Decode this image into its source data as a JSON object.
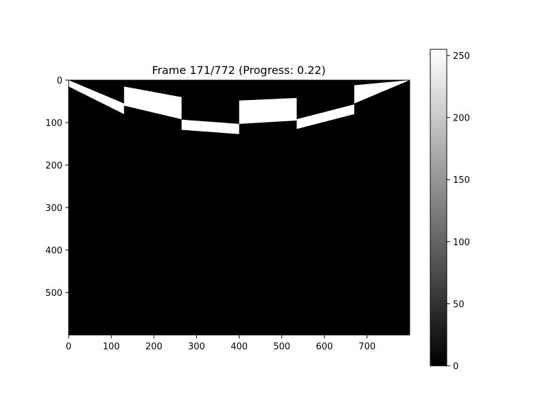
{
  "chart_data": {
    "type": "heatmap",
    "title": "Frame 171/772 (Progress: 0.22)",
    "colormap": "gray",
    "image_size": {
      "width": 800,
      "height": 600
    },
    "xlim": [
      0,
      800
    ],
    "ylim": [
      600,
      0
    ],
    "x_ticks": [
      0,
      100,
      200,
      300,
      400,
      500,
      600,
      700
    ],
    "y_ticks": [
      0,
      100,
      200,
      300,
      400,
      500
    ],
    "background_value": 0,
    "bands": [
      {
        "x_start": 0,
        "x_end": 130,
        "top": [
          0,
          55
        ],
        "bottom": [
          15,
          80
        ],
        "value": 255
      },
      {
        "x_start": 130,
        "x_end": 265,
        "top": [
          15,
          40
        ],
        "bottom": [
          60,
          92
        ],
        "value": 255
      },
      {
        "x_start": 265,
        "x_end": 400,
        "top": [
          93,
          103
        ],
        "bottom": [
          117,
          127
        ],
        "value": 255
      },
      {
        "x_start": 400,
        "x_end": 535,
        "top": [
          48,
          42
        ],
        "bottom": [
          103,
          95
        ],
        "value": 255
      },
      {
        "x_start": 535,
        "x_end": 670,
        "top": [
          92,
          57
        ],
        "bottom": [
          115,
          80
        ],
        "value": 255
      },
      {
        "x_start": 670,
        "x_end": 800,
        "top": [
          12,
          0
        ],
        "bottom": [
          55,
          0
        ],
        "value": 255
      }
    ],
    "colorbar": {
      "min": 0,
      "max": 255,
      "ticks": [
        0,
        50,
        100,
        150,
        200,
        250
      ]
    }
  }
}
